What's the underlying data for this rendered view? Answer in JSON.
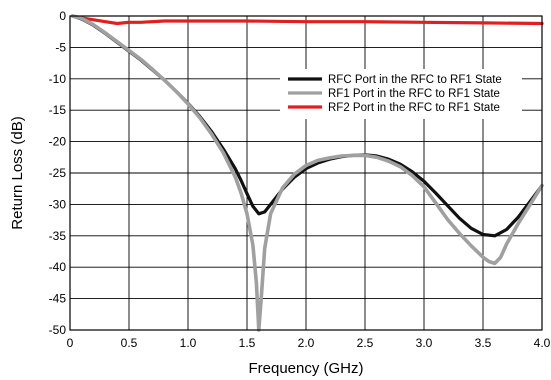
{
  "chart_data": {
    "type": "line",
    "title": "",
    "xlabel": "Frequency (GHz)",
    "ylabel": "Return Loss (dB)",
    "xlim": [
      0,
      4.0
    ],
    "ylim": [
      -50,
      0
    ],
    "grid": true,
    "legend_position": "top-right",
    "xticks": [
      "0",
      "0.5",
      "1.0",
      "1.5",
      "2.0",
      "2.5",
      "3.0",
      "3.5",
      "4.0"
    ],
    "yticks": [
      "0",
      "-5",
      "-10",
      "-15",
      "-20",
      "-25",
      "-30",
      "-35",
      "-40",
      "-45",
      "-50"
    ],
    "series": [
      {
        "name": "RFC Port in the RFC to RF1 State",
        "color": "#111111",
        "x": [
          0.02,
          0.1,
          0.2,
          0.3,
          0.4,
          0.5,
          0.6,
          0.7,
          0.8,
          0.9,
          1.0,
          1.1,
          1.2,
          1.3,
          1.4,
          1.45,
          1.5,
          1.55,
          1.6,
          1.65,
          1.7,
          1.8,
          1.9,
          2.0,
          2.1,
          2.2,
          2.3,
          2.4,
          2.5,
          2.6,
          2.7,
          2.8,
          2.9,
          3.0,
          3.1,
          3.2,
          3.3,
          3.4,
          3.5,
          3.6,
          3.7,
          3.8,
          3.9,
          4.0
        ],
        "y": [
          0,
          -0.5,
          -1.5,
          -2.8,
          -4.2,
          -5.6,
          -7.0,
          -8.6,
          -10.2,
          -12.0,
          -13.9,
          -16.0,
          -18.4,
          -21.2,
          -24.3,
          -26.2,
          -28.3,
          -30.3,
          -31.5,
          -31.2,
          -30.0,
          -27.6,
          -25.7,
          -24.3,
          -23.4,
          -22.8,
          -22.4,
          -22.2,
          -22.1,
          -22.3,
          -22.8,
          -23.6,
          -24.8,
          -26.3,
          -28.2,
          -30.2,
          -32.2,
          -33.8,
          -34.8,
          -35.0,
          -34.0,
          -32.0,
          -29.5,
          -27.0
        ]
      },
      {
        "name": "RF1 Port in the RFC to RF1 State",
        "color": "#a0a0a0",
        "x": [
          0.02,
          0.1,
          0.2,
          0.3,
          0.4,
          0.5,
          0.6,
          0.7,
          0.8,
          0.9,
          1.0,
          1.1,
          1.2,
          1.3,
          1.4,
          1.45,
          1.5,
          1.55,
          1.58,
          1.6,
          1.62,
          1.65,
          1.7,
          1.8,
          1.9,
          2.0,
          2.1,
          2.2,
          2.3,
          2.4,
          2.5,
          2.6,
          2.7,
          2.8,
          2.9,
          3.0,
          3.1,
          3.2,
          3.3,
          3.4,
          3.5,
          3.55,
          3.6,
          3.65,
          3.7,
          3.8,
          3.9,
          4.0
        ],
        "y": [
          0,
          -0.4,
          -1.4,
          -2.7,
          -4.1,
          -5.5,
          -6.9,
          -8.5,
          -10.2,
          -12.0,
          -14.0,
          -16.2,
          -18.8,
          -21.8,
          -25.6,
          -28.2,
          -31.5,
          -36.5,
          -42.5,
          -50.0,
          -45.0,
          -37.0,
          -31.5,
          -27.4,
          -25.2,
          -23.8,
          -23.0,
          -22.6,
          -22.3,
          -22.2,
          -22.2,
          -22.5,
          -23.1,
          -24.0,
          -25.4,
          -27.2,
          -29.8,
          -32.4,
          -34.6,
          -36.6,
          -38.4,
          -39.1,
          -39.4,
          -38.4,
          -36.3,
          -33.0,
          -30.0,
          -27.0
        ]
      },
      {
        "name": "RF2 Port in the RFC to RF1 State",
        "color": "#e02020",
        "x": [
          0.02,
          0.1,
          0.2,
          0.3,
          0.4,
          0.5,
          0.6,
          0.8,
          1.0,
          1.5,
          2.0,
          2.5,
          3.0,
          3.5,
          4.0
        ],
        "y": [
          0,
          -0.3,
          -0.6,
          -0.9,
          -1.2,
          -1.0,
          -1.0,
          -0.8,
          -0.8,
          -0.8,
          -0.9,
          -0.9,
          -1.0,
          -1.1,
          -1.2
        ]
      }
    ]
  }
}
